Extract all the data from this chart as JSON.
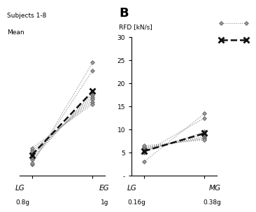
{
  "subjects_label": "Subjects 1-8",
  "mean_label": "Mean",
  "title_B": "B",
  "ylabel_B": "RFD [kN/s]",
  "subject_lines_A": [
    [
      2.5,
      24.5
    ],
    [
      2.8,
      22.8
    ],
    [
      3.5,
      18.0
    ],
    [
      4.0,
      17.5
    ],
    [
      4.5,
      17.0
    ],
    [
      5.0,
      16.5
    ],
    [
      5.5,
      16.0
    ],
    [
      6.0,
      15.5
    ]
  ],
  "mean_line_A": [
    4.5,
    18.3
  ],
  "subject_lines_B": [
    [
      3.0,
      13.5
    ],
    [
      5.0,
      12.5
    ],
    [
      5.2,
      9.5
    ],
    [
      5.5,
      9.0
    ],
    [
      5.8,
      8.5
    ],
    [
      6.0,
      8.2
    ],
    [
      6.2,
      8.0
    ],
    [
      6.5,
      7.8
    ]
  ],
  "mean_line_B": [
    5.3,
    9.2
  ],
  "subject_color": "#888888",
  "mean_color": "#111111",
  "subject_lw": 0.8,
  "mean_lw": 1.8,
  "subject_ls": "dotted",
  "mean_ls": "dashed",
  "ylim_A": [
    0,
    30
  ],
  "ylim_B": [
    0,
    30
  ],
  "yticks_B": [
    0,
    5,
    10,
    15,
    20,
    25,
    30
  ],
  "ytick_labels_B": [
    "-",
    "5",
    "10",
    "15",
    "20",
    "25",
    "30"
  ]
}
